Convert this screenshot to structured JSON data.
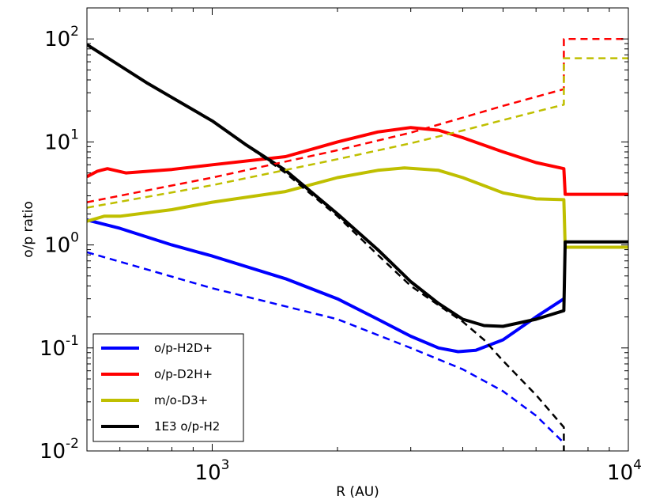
{
  "chart_data": {
    "type": "line",
    "xscale": "log",
    "yscale": "log",
    "xlim": [
      500,
      10000
    ],
    "ylim": [
      0.01,
      200
    ],
    "xlabel": "R (AU)",
    "ylabel": "o/p ratio",
    "xticks": [
      {
        "value": 1000,
        "base": "10",
        "exp": "3"
      },
      {
        "value": 10000,
        "base": "10",
        "exp": "4"
      }
    ],
    "yticks": [
      {
        "value": 100,
        "base": "10",
        "exp": "2"
      },
      {
        "value": 10,
        "base": "10",
        "exp": "1"
      },
      {
        "value": 1,
        "base": "10",
        "exp": "0"
      },
      {
        "value": 0.1,
        "base": "10",
        "exp": "-1"
      },
      {
        "value": 0.01,
        "base": "10",
        "exp": "-2"
      }
    ],
    "legend_position": "lower-left",
    "series": [
      {
        "name": "o/p-H2D+",
        "color": "#0000ff",
        "style": "solid",
        "in_legend": true,
        "points": [
          [
            500,
            1.75
          ],
          [
            600,
            1.45
          ],
          [
            800,
            1.0
          ],
          [
            1000,
            0.78
          ],
          [
            1500,
            0.47
          ],
          [
            2000,
            0.3
          ],
          [
            2500,
            0.19
          ],
          [
            3000,
            0.13
          ],
          [
            3500,
            0.1
          ],
          [
            3900,
            0.092
          ],
          [
            4300,
            0.095
          ],
          [
            5000,
            0.12
          ],
          [
            6000,
            0.2
          ],
          [
            7000,
            0.3
          ]
        ]
      },
      {
        "name": "o/p-D2H+",
        "color": "#ff0000",
        "style": "solid",
        "in_legend": true,
        "points": [
          [
            500,
            4.6
          ],
          [
            530,
            5.2
          ],
          [
            560,
            5.5
          ],
          [
            620,
            5.0
          ],
          [
            800,
            5.4
          ],
          [
            1000,
            6.0
          ],
          [
            1500,
            7.2
          ],
          [
            2000,
            10.0
          ],
          [
            2500,
            12.5
          ],
          [
            3000,
            13.8
          ],
          [
            3500,
            13.0
          ],
          [
            4000,
            11.0
          ],
          [
            5000,
            8.0
          ],
          [
            6000,
            6.3
          ],
          [
            7000,
            5.5
          ],
          [
            7050,
            3.1
          ],
          [
            10000,
            3.1
          ]
        ]
      },
      {
        "name": "m/o-D3+",
        "color": "#bfbf00",
        "style": "solid",
        "in_legend": true,
        "points": [
          [
            500,
            1.7
          ],
          [
            550,
            1.9
          ],
          [
            600,
            1.9
          ],
          [
            800,
            2.2
          ],
          [
            1000,
            2.6
          ],
          [
            1500,
            3.3
          ],
          [
            2000,
            4.5
          ],
          [
            2500,
            5.3
          ],
          [
            2900,
            5.6
          ],
          [
            3500,
            5.3
          ],
          [
            4000,
            4.5
          ],
          [
            5000,
            3.2
          ],
          [
            6000,
            2.8
          ],
          [
            7000,
            2.75
          ],
          [
            7050,
            0.95
          ],
          [
            10000,
            0.95
          ]
        ]
      },
      {
        "name": "1E3 o/p-H2",
        "color": "#000000",
        "style": "solid",
        "in_legend": true,
        "points": [
          [
            500,
            88
          ],
          [
            600,
            55
          ],
          [
            700,
            37
          ],
          [
            800,
            27
          ],
          [
            1000,
            16
          ],
          [
            1200,
            9.5
          ],
          [
            1500,
            5.3
          ],
          [
            2000,
            2.0
          ],
          [
            2500,
            0.9
          ],
          [
            3000,
            0.44
          ],
          [
            3500,
            0.27
          ],
          [
            4000,
            0.19
          ],
          [
            4500,
            0.165
          ],
          [
            5000,
            0.162
          ],
          [
            6000,
            0.19
          ],
          [
            7000,
            0.23
          ],
          [
            7050,
            1.07
          ],
          [
            10000,
            1.07
          ]
        ]
      },
      {
        "name": "o/p-H2D+ (dashed)",
        "color": "#0000ff",
        "style": "dashed",
        "in_legend": false,
        "points": [
          [
            500,
            0.85
          ],
          [
            1000,
            0.38
          ],
          [
            2000,
            0.19
          ],
          [
            3000,
            0.1
          ],
          [
            4000,
            0.062
          ],
          [
            5000,
            0.038
          ],
          [
            6000,
            0.022
          ],
          [
            7000,
            0.012
          ]
        ]
      },
      {
        "name": "o/p-D2H+ (dashed)",
        "color": "#ff0000",
        "style": "dashed",
        "in_legend": false,
        "points": [
          [
            500,
            2.6
          ],
          [
            1000,
            4.5
          ],
          [
            2000,
            8.3
          ],
          [
            3000,
            12.3
          ],
          [
            4000,
            17.2
          ],
          [
            5000,
            22.4
          ],
          [
            6000,
            27.4
          ],
          [
            7000,
            32.5
          ],
          [
            7000,
            100
          ],
          [
            10000,
            100
          ]
        ]
      },
      {
        "name": "m/o-D3+ (dashed)",
        "color": "#bfbf00",
        "style": "dashed",
        "in_legend": false,
        "points": [
          [
            500,
            2.3
          ],
          [
            1000,
            3.8
          ],
          [
            2000,
            6.8
          ],
          [
            3000,
            9.7
          ],
          [
            4000,
            12.9
          ],
          [
            5000,
            16.3
          ],
          [
            6000,
            19.7
          ],
          [
            7000,
            23
          ],
          [
            7000,
            65
          ],
          [
            10000,
            65
          ]
        ]
      },
      {
        "name": "1E3 o/p-H2 (dashed)",
        "color": "#000000",
        "style": "dashed",
        "in_legend": false,
        "points": [
          [
            1000,
            16
          ],
          [
            1500,
            5.0
          ],
          [
            2000,
            1.9
          ],
          [
            2500,
            0.8
          ],
          [
            3000,
            0.4
          ],
          [
            3500,
            0.26
          ],
          [
            4000,
            0.18
          ],
          [
            4500,
            0.12
          ],
          [
            5000,
            0.075
          ],
          [
            6000,
            0.035
          ],
          [
            7000,
            0.017
          ],
          [
            7000,
            0.01
          ]
        ]
      }
    ]
  }
}
